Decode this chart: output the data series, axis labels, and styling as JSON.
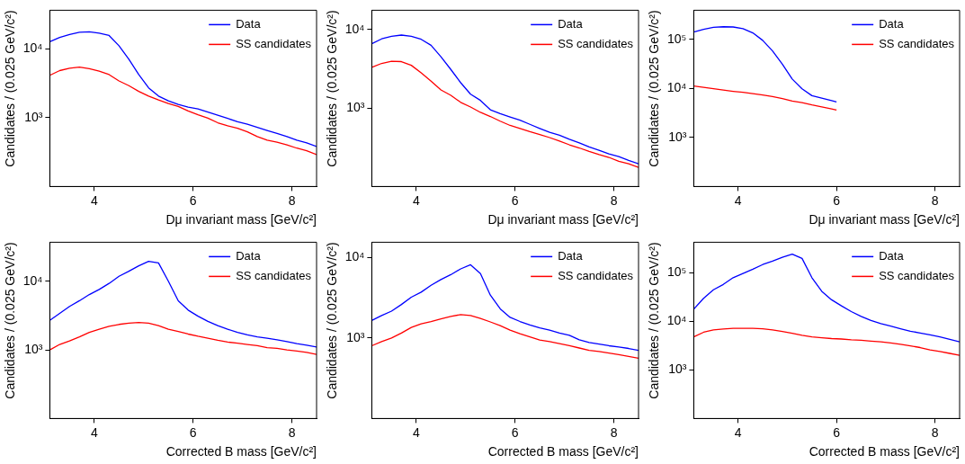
{
  "chart_data": [
    {
      "type": "line",
      "xlabel": "Dμ invariant mass [GeV/c²]",
      "ylabel": "Candidates / (0.025 GeV/c²)",
      "log": true,
      "grid": false,
      "legend": "top right",
      "xlim": [
        3.1,
        8.5
      ],
      "xticks": [
        4,
        6,
        8
      ],
      "ylim": [
        100,
        36000
      ],
      "yticks": [
        {
          "value": 1000,
          "label": "10³"
        },
        {
          "value": 10000,
          "label": "10⁴"
        }
      ],
      "x": [
        3.1,
        3.3,
        3.5,
        3.7,
        3.9,
        4.1,
        4.3,
        4.5,
        4.7,
        4.9,
        5.1,
        5.3,
        5.5,
        5.7,
        5.9,
        6.1,
        6.3,
        6.5,
        6.7,
        6.9,
        7.1,
        7.3,
        7.5,
        7.7,
        7.9,
        8.1,
        8.3,
        8.5
      ],
      "series": [
        {
          "name": "Data",
          "color": "#0000ff",
          "values": [
            12600,
            14500,
            16000,
            17300,
            17500,
            16800,
            15500,
            11000,
            7000,
            4200,
            2700,
            2050,
            1750,
            1550,
            1420,
            1330,
            1200,
            1080,
            970,
            870,
            800,
            720,
            650,
            590,
            530,
            470,
            430,
            380
          ]
        },
        {
          "name": "SS candidates",
          "color": "#ff0000",
          "values": [
            4100,
            4800,
            5200,
            5400,
            5100,
            4700,
            4200,
            3400,
            2900,
            2400,
            2050,
            1800,
            1600,
            1450,
            1250,
            1100,
            980,
            840,
            760,
            700,
            620,
            530,
            470,
            440,
            400,
            360,
            330,
            290
          ]
        }
      ]
    },
    {
      "type": "line",
      "xlabel": "Dμ invariant mass [GeV/c²]",
      "ylabel": "Candidates / (0.025 GeV/c²)",
      "log": true,
      "grid": false,
      "legend": "top right",
      "xlim": [
        3.1,
        8.5
      ],
      "xticks": [
        4,
        6,
        8
      ],
      "ylim": [
        100,
        17600
      ],
      "yticks": [
        {
          "value": 1000,
          "label": "10³"
        },
        {
          "value": 10000,
          "label": "10⁴"
        }
      ],
      "x": [
        3.1,
        3.3,
        3.5,
        3.7,
        3.9,
        4.1,
        4.3,
        4.5,
        4.7,
        4.9,
        5.1,
        5.3,
        5.5,
        5.7,
        5.9,
        6.1,
        6.3,
        6.5,
        6.7,
        6.9,
        7.1,
        7.3,
        7.5,
        7.7,
        7.9,
        8.1,
        8.3,
        8.5
      ],
      "series": [
        {
          "name": "Data",
          "color": "#0000ff",
          "values": [
            6600,
            7600,
            8200,
            8500,
            8200,
            7500,
            6300,
            4500,
            3100,
            2100,
            1500,
            1250,
            950,
            850,
            770,
            700,
            620,
            550,
            490,
            450,
            400,
            360,
            320,
            290,
            260,
            240,
            215,
            195
          ]
        },
        {
          "name": "SS candidates",
          "color": "#ff0000",
          "values": [
            3300,
            3700,
            3950,
            3900,
            3500,
            2800,
            2200,
            1700,
            1450,
            1180,
            1030,
            880,
            780,
            680,
            600,
            550,
            500,
            460,
            420,
            380,
            340,
            310,
            280,
            255,
            235,
            210,
            195,
            175
          ]
        }
      ]
    },
    {
      "type": "line",
      "xlabel": "Dμ invariant mass [GeV/c²]",
      "ylabel": "Candidates / (0.025 GeV/c²)",
      "log": true,
      "grid": false,
      "legend": "top right",
      "xlim": [
        3.1,
        8.5
      ],
      "xticks": [
        4,
        6,
        8
      ],
      "ylim": [
        100,
        390000
      ],
      "yticks": [
        {
          "value": 1000,
          "label": "10³"
        },
        {
          "value": 10000,
          "label": "10⁴"
        },
        {
          "value": 100000,
          "label": "10⁵"
        }
      ],
      "x": [
        3.1,
        3.3,
        3.5,
        3.7,
        3.9,
        4.1,
        4.3,
        4.5,
        4.7,
        4.9,
        5.1,
        5.3,
        5.5,
        5.7,
        5.9,
        6.0
      ],
      "series": [
        {
          "name": "Data",
          "color": "#0000ff",
          "values": [
            140000,
            160000,
            175000,
            180000,
            178000,
            165000,
            135000,
            95000,
            58000,
            31000,
            15500,
            9800,
            7100,
            6300,
            5600,
            5300
          ]
        },
        {
          "name": "SS candidates",
          "color": "#ff0000",
          "values": [
            11200,
            10500,
            9800,
            9200,
            8700,
            8300,
            7800,
            7300,
            6800,
            6200,
            5500,
            5100,
            4600,
            4200,
            3800,
            3600
          ]
        }
      ]
    },
    {
      "type": "line",
      "xlabel": "Corrected B mass [GeV/c²]",
      "ylabel": "Candidates / (0.025 GeV/c²)",
      "log": true,
      "grid": false,
      "legend": "top right",
      "xlim": [
        3.1,
        8.5
      ],
      "xticks": [
        4,
        6,
        8
      ],
      "ylim": [
        100,
        37000
      ],
      "yticks": [
        {
          "value": 1000,
          "label": "10³"
        },
        {
          "value": 10000,
          "label": "10⁴"
        }
      ],
      "x": [
        3.1,
        3.3,
        3.5,
        3.7,
        3.9,
        4.1,
        4.3,
        4.5,
        4.7,
        4.9,
        5.1,
        5.3,
        5.5,
        5.7,
        5.9,
        6.1,
        6.3,
        6.5,
        6.7,
        6.9,
        7.1,
        7.3,
        7.5,
        7.7,
        7.9,
        8.1,
        8.3,
        8.5
      ],
      "series": [
        {
          "name": "Data",
          "color": "#0000ff",
          "values": [
            2700,
            3400,
            4300,
            5200,
            6400,
            7600,
            9300,
            11800,
            14000,
            16800,
            19500,
            18500,
            10000,
            5200,
            3800,
            3100,
            2600,
            2250,
            2000,
            1800,
            1650,
            1550,
            1480,
            1400,
            1320,
            1230,
            1170,
            1100
          ]
        },
        {
          "name": "SS candidates",
          "color": "#ff0000",
          "values": [
            1000,
            1200,
            1350,
            1550,
            1800,
            2000,
            2200,
            2350,
            2450,
            2500,
            2450,
            2250,
            2000,
            1850,
            1700,
            1580,
            1480,
            1380,
            1300,
            1250,
            1200,
            1150,
            1080,
            1050,
            1000,
            960,
            920,
            860
          ]
        }
      ]
    },
    {
      "type": "line",
      "xlabel": "Corrected B mass [GeV/c²]",
      "ylabel": "Candidates / (0.025 GeV/c²)",
      "log": true,
      "grid": false,
      "legend": "top right",
      "xlim": [
        3.1,
        8.5
      ],
      "xticks": [
        4,
        6,
        8
      ],
      "ylim": [
        100,
        15400
      ],
      "yticks": [
        {
          "value": 1000,
          "label": "10³"
        },
        {
          "value": 10000,
          "label": "10⁴"
        }
      ],
      "x": [
        3.1,
        3.3,
        3.5,
        3.7,
        3.9,
        4.1,
        4.3,
        4.5,
        4.7,
        4.9,
        5.1,
        5.3,
        5.5,
        5.7,
        5.9,
        6.1,
        6.3,
        6.5,
        6.7,
        6.9,
        7.1,
        7.3,
        7.5,
        7.7,
        7.9,
        8.1,
        8.3,
        8.5
      ],
      "series": [
        {
          "name": "Data",
          "color": "#0000ff",
          "values": [
            1650,
            1900,
            2150,
            2600,
            3200,
            3700,
            4500,
            5300,
            6100,
            7200,
            8100,
            6300,
            3400,
            2300,
            1800,
            1600,
            1450,
            1330,
            1250,
            1150,
            1080,
            950,
            880,
            840,
            800,
            770,
            740,
            700
          ]
        },
        {
          "name": "SS candidates",
          "color": "#ff0000",
          "values": [
            800,
            900,
            1000,
            1150,
            1350,
            1500,
            1600,
            1720,
            1850,
            1950,
            1900,
            1750,
            1580,
            1420,
            1250,
            1130,
            1030,
            940,
            900,
            850,
            800,
            750,
            700,
            680,
            650,
            620,
            590,
            560
          ]
        }
      ]
    },
    {
      "type": "line",
      "xlabel": "Corrected B mass [GeV/c²]",
      "ylabel": "Candidates / (0.025 GeV/c²)",
      "log": true,
      "grid": false,
      "legend": "top right",
      "xlim": [
        3.1,
        8.5
      ],
      "xticks": [
        4,
        6,
        8
      ],
      "ylim": [
        100,
        430000
      ],
      "yticks": [
        {
          "value": 1000,
          "label": "10³"
        },
        {
          "value": 10000,
          "label": "10⁴"
        },
        {
          "value": 100000,
          "label": "10⁵"
        }
      ],
      "x": [
        3.1,
        3.3,
        3.5,
        3.7,
        3.9,
        4.1,
        4.3,
        4.5,
        4.7,
        4.9,
        5.1,
        5.3,
        5.5,
        5.7,
        5.9,
        6.1,
        6.3,
        6.5,
        6.7,
        6.9,
        7.1,
        7.3,
        7.5,
        7.7,
        7.9,
        8.1,
        8.3,
        8.5
      ],
      "series": [
        {
          "name": "Data",
          "color": "#0000ff",
          "values": [
            18000,
            30000,
            45000,
            58000,
            80000,
            98000,
            120000,
            149000,
            175000,
            210000,
            245000,
            200000,
            80000,
            42000,
            28000,
            21000,
            16000,
            12700,
            10500,
            9000,
            8000,
            7100,
            6300,
            5800,
            5300,
            4800,
            4300,
            3800
          ]
        },
        {
          "name": "SS candidates",
          "color": "#ff0000",
          "values": [
            4800,
            6000,
            6700,
            7000,
            7200,
            7200,
            7200,
            7100,
            6700,
            6200,
            5700,
            5200,
            4800,
            4600,
            4450,
            4350,
            4200,
            4100,
            3950,
            3800,
            3600,
            3400,
            3150,
            2900,
            2600,
            2400,
            2200,
            2000
          ]
        }
      ]
    }
  ]
}
